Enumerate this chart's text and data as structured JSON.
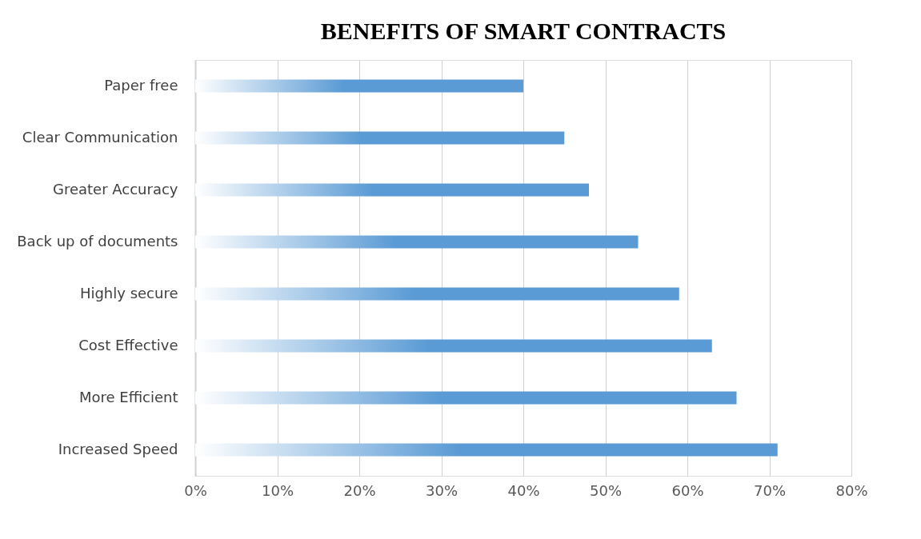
{
  "chart_data": {
    "type": "bar",
    "orientation": "horizontal",
    "title": "BENEFITS OF SMART CONTRACTS",
    "categories": [
      "Paper free",
      "Clear Communication",
      "Greater Accuracy",
      "Back up of documents",
      "Highly secure",
      "Cost Effective",
      "More Efficient",
      "Increased Speed"
    ],
    "values": [
      40,
      45,
      48,
      54,
      59,
      63,
      66,
      71
    ],
    "color": "#5b9bd5",
    "xlim": [
      0,
      80
    ],
    "xticks": [
      {
        "value": 0,
        "label": "0%"
      },
      {
        "value": 10,
        "label": "10%"
      },
      {
        "value": 20,
        "label": "20%"
      },
      {
        "value": 30,
        "label": "30%"
      },
      {
        "value": 40,
        "label": "40%"
      },
      {
        "value": 50,
        "label": "50%"
      },
      {
        "value": 60,
        "label": "60%"
      },
      {
        "value": 70,
        "label": "70%"
      },
      {
        "value": 80,
        "label": "80%"
      }
    ],
    "grid": "x"
  }
}
